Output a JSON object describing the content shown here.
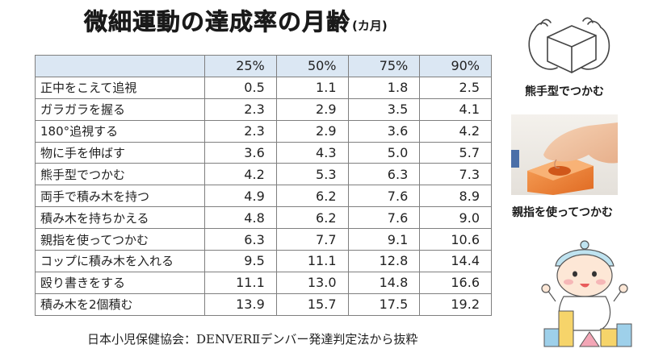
{
  "title": {
    "main": "微細運動の達成率の月齢",
    "unit": "(カ月)"
  },
  "table": {
    "corner": "",
    "headers": [
      "25%",
      "50%",
      "75%",
      "90%"
    ],
    "rows": [
      {
        "label": "正中をこえて追視",
        "values": [
          "0.5",
          "1.1",
          "1.8",
          "2.5"
        ]
      },
      {
        "label": "ガラガラを握る",
        "values": [
          "2.3",
          "2.9",
          "3.5",
          "4.1"
        ]
      },
      {
        "label": "180°追視する",
        "values": [
          "2.3",
          "2.9",
          "3.6",
          "4.2"
        ]
      },
      {
        "label": "物に手を伸ばす",
        "values": [
          "3.6",
          "4.3",
          "5.0",
          "5.7"
        ]
      },
      {
        "label": "熊手型でつかむ",
        "values": [
          "4.2",
          "5.3",
          "6.3",
          "7.3"
        ]
      },
      {
        "label": "両手で積み木を持つ",
        "values": [
          "4.9",
          "6.2",
          "7.6",
          "8.9"
        ]
      },
      {
        "label": "積み木を持ちかえる",
        "values": [
          "4.8",
          "6.2",
          "7.6",
          "9.0"
        ]
      },
      {
        "label": "親指を使ってつかむ",
        "values": [
          "6.3",
          "7.7",
          "9.1",
          "10.6"
        ]
      },
      {
        "label": "コップに積み木を入れる",
        "values": [
          "9.5",
          "11.1",
          "12.8",
          "14.4"
        ]
      },
      {
        "label": "殴り書きをする",
        "values": [
          "11.1",
          "13.0",
          "14.8",
          "16.6"
        ]
      },
      {
        "label": "積み木を2個積む",
        "values": [
          "13.9",
          "15.7",
          "17.5",
          "19.2"
        ]
      }
    ]
  },
  "source": "日本小児保健協会：DENVERⅡデンバー発達判定法から抜粋",
  "side": {
    "label_1": "熊手型でつかむ",
    "label_2": "親指を使ってつかむ"
  },
  "icons": {
    "illustration_1": "hand-grasping-block-icon",
    "illustration_2": "hand-pinching-block-photo",
    "illustration_3": "baby-with-blocks-icon"
  }
}
